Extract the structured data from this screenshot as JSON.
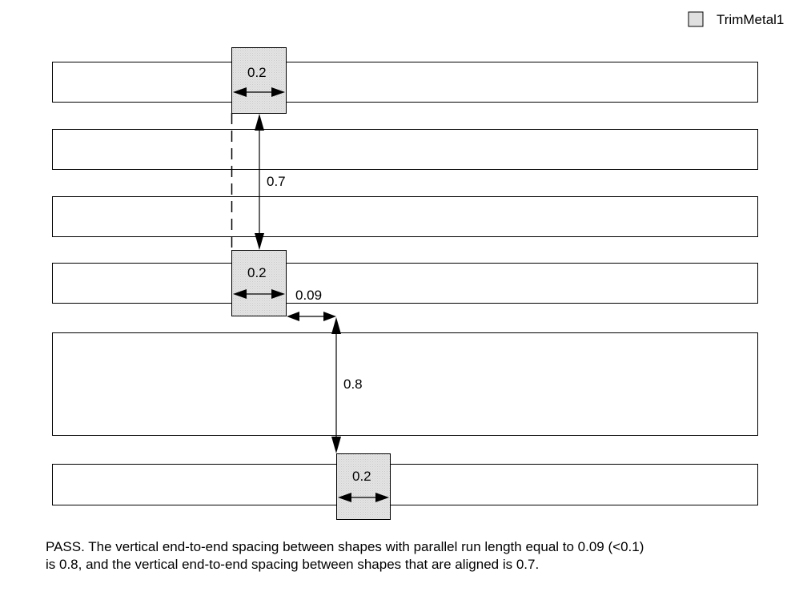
{
  "legend": {
    "label": "TrimMetal1",
    "swatch_fill": "#e0e0e0"
  },
  "colors": {
    "wire_stroke": "#000000",
    "wire_fill": "#ffffff",
    "trim_fill": "#e0e0e0",
    "line": "#000000"
  },
  "shapes": {
    "wires": [
      "wire-1",
      "wire-2",
      "wire-3",
      "wire-4",
      "wire-5",
      "wire-6"
    ],
    "trim_shapes": [
      "trim-1",
      "trim-2",
      "trim-3"
    ]
  },
  "dimensions": {
    "trim_width_1": "0.2",
    "trim_width_2": "0.2",
    "trim_width_3": "0.2",
    "aligned_spacing": "0.7",
    "parallel_run_length": "0.09",
    "end_to_end_spacing": "0.8"
  },
  "caption": {
    "line1": "PASS. The vertical end-to-end spacing between shapes with parallel run length equal to 0.09 (<0.1)",
    "line2": "is 0.8, and the vertical end-to-end spacing between shapes that are aligned is 0.7."
  }
}
